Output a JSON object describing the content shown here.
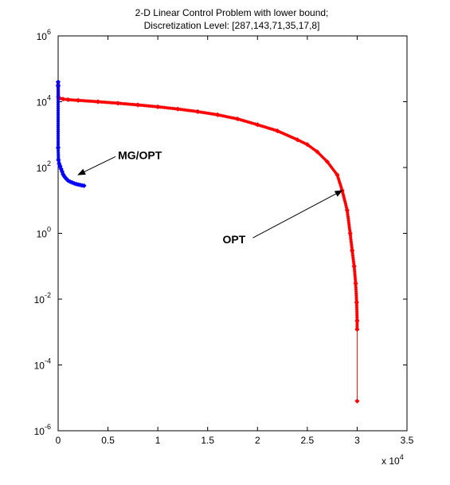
{
  "chart_data": {
    "type": "scatter",
    "title": "2-D Linear Control Problem with lower bound;",
    "subtitle": "Discretization Level: [287,143,71,35,17,8]",
    "xlabel": "",
    "ylabel": "",
    "x_multiplier": "x 10",
    "x_multiplier_exp": "4",
    "xlim": [
      0,
      35000
    ],
    "ylim": [
      1e-06,
      1000000
    ],
    "y_scale": "log",
    "x_ticks": [
      {
        "value": 0,
        "label": "0"
      },
      {
        "value": 5000,
        "label": "0.5"
      },
      {
        "value": 10000,
        "label": "1"
      },
      {
        "value": 15000,
        "label": "1.5"
      },
      {
        "value": 20000,
        "label": "2"
      },
      {
        "value": 25000,
        "label": "2.5"
      },
      {
        "value": 30000,
        "label": "3"
      },
      {
        "value": 35000,
        "label": "3.5"
      }
    ],
    "y_ticks": [
      {
        "value": 1000000,
        "base": "10",
        "exp": "6"
      },
      {
        "value": 10000,
        "base": "10",
        "exp": "4"
      },
      {
        "value": 100,
        "base": "10",
        "exp": "2"
      },
      {
        "value": 1,
        "base": "10",
        "exp": "0"
      },
      {
        "value": 0.01,
        "base": "10",
        "exp": "-2"
      },
      {
        "value": 0.0001,
        "base": "10",
        "exp": "-4"
      },
      {
        "value": 1e-06,
        "base": "10",
        "exp": "-6"
      }
    ],
    "grid": false,
    "series": [
      {
        "color": "#ff0000",
        "marker": "diamond",
        "points": [
          [
            0,
            32000
          ],
          [
            30,
            14000
          ],
          [
            100,
            12800
          ],
          [
            500,
            12000
          ],
          [
            1000,
            11500
          ],
          [
            2000,
            11000
          ],
          [
            4000,
            10000
          ],
          [
            6000,
            9000
          ],
          [
            8000,
            8000
          ],
          [
            10000,
            7000
          ],
          [
            12000,
            6000
          ],
          [
            14000,
            5000
          ],
          [
            16000,
            4000
          ],
          [
            18000,
            3000
          ],
          [
            20000,
            2000
          ],
          [
            22000,
            1300
          ],
          [
            24000,
            700
          ],
          [
            25000,
            500
          ],
          [
            26000,
            300
          ],
          [
            27000,
            150
          ],
          [
            28000,
            60
          ],
          [
            28500,
            20
          ],
          [
            29000,
            5
          ],
          [
            29300,
            1
          ],
          [
            29500,
            0.3
          ],
          [
            29700,
            0.1
          ],
          [
            29850,
            0.03
          ],
          [
            29950,
            0.008
          ],
          [
            30000,
            0.0022
          ],
          [
            30000,
            0.0012
          ],
          [
            30000,
            8e-06
          ]
        ]
      },
      {
        "color": "#0000ff",
        "marker": "diamond",
        "points": [
          [
            0,
            40000
          ],
          [
            0,
            30000
          ],
          [
            0,
            400
          ],
          [
            30,
            170
          ],
          [
            100,
            130
          ],
          [
            200,
            110
          ],
          [
            300,
            90
          ],
          [
            400,
            75
          ],
          [
            500,
            62
          ],
          [
            600,
            55
          ],
          [
            700,
            50
          ],
          [
            800,
            46
          ],
          [
            900,
            43
          ],
          [
            1000,
            40
          ],
          [
            1200,
            37
          ],
          [
            1400,
            35
          ],
          [
            1600,
            33
          ],
          [
            1800,
            31.5
          ],
          [
            2000,
            30.5
          ],
          [
            2200,
            29.5
          ],
          [
            2400,
            28.5
          ],
          [
            2600,
            28
          ]
        ]
      }
    ],
    "annotations": [
      {
        "text": "MG/OPT",
        "x": 6000,
        "y": 240,
        "arrow_to": [
          2000,
          60
        ]
      },
      {
        "text": "OPT",
        "x": 16500,
        "y": 0.65,
        "arrow_to": [
          28500,
          20
        ]
      }
    ]
  }
}
